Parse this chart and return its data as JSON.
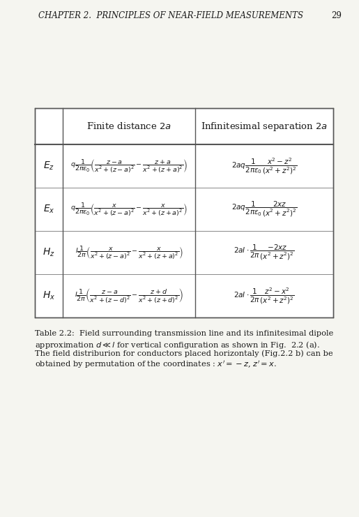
{
  "header_text": "CHAPTER 2.  PRINCIPLES OF NEAR-FIELD MEASUREMENTS",
  "page_number": "29",
  "col_headers": [
    "Finite distance $2a$",
    "Infinitesimal separation $2a$"
  ],
  "row_labels": [
    "$E_z$",
    "$E_x$",
    "$H_z$",
    "$H_x$"
  ],
  "finite_formulas": [
    "$q\\dfrac{1}{2\\pi\\epsilon_0}\\left(\\dfrac{z-a}{x^2+(z-a)^2} - \\dfrac{z+a}{x^2+(z+a)^2}\\right)$",
    "$q\\dfrac{1}{2\\pi\\epsilon_0}\\left(\\dfrac{x}{x^2+(z-a)^2} - \\dfrac{x}{x^2+(z+a)^2}\\right)$",
    "$I\\dfrac{1}{2\\pi}\\left(\\dfrac{x}{x^2+(z-a)^2} - \\dfrac{x}{x^2+(z+a)^2}\\right)$",
    "$I\\dfrac{1}{2\\pi}\\left(\\dfrac{z-a}{x^2+(z-d)^2} - \\dfrac{z+d}{x^2+(z+d)^2}\\right)$"
  ],
  "infinitesimal_formulas": [
    "$2aq\\dfrac{1}{2\\pi\\epsilon_0}\\dfrac{x^2-z^2}{(x^2+z^2)^2}$",
    "$2aq\\dfrac{1}{2\\pi\\epsilon_0}\\dfrac{2xz}{(x^2+z^2)^2}$",
    "$2aI \\cdot \\dfrac{1}{2\\pi}\\dfrac{-2xz}{(x^2+z^2)^2}$",
    "$2aI \\cdot \\dfrac{1}{2\\pi}\\dfrac{z^2-x^2}{(x^2+z^2)^2}$"
  ],
  "caption": "Table 2.2:  Field surrounding transmission line and its infinitesimal dipole\napproximation $d \\ll l$ for vertical configuration as shown in Fig.  2.2 (a).\nThe field distriburion for conductors placed horizontaly (Fig.2.2 b) can be\nobtained by permutation of the coordinates : $x' = -z$, $z' = x$.",
  "bg_color": "#f5f5f0",
  "text_color": "#1a1a1a"
}
